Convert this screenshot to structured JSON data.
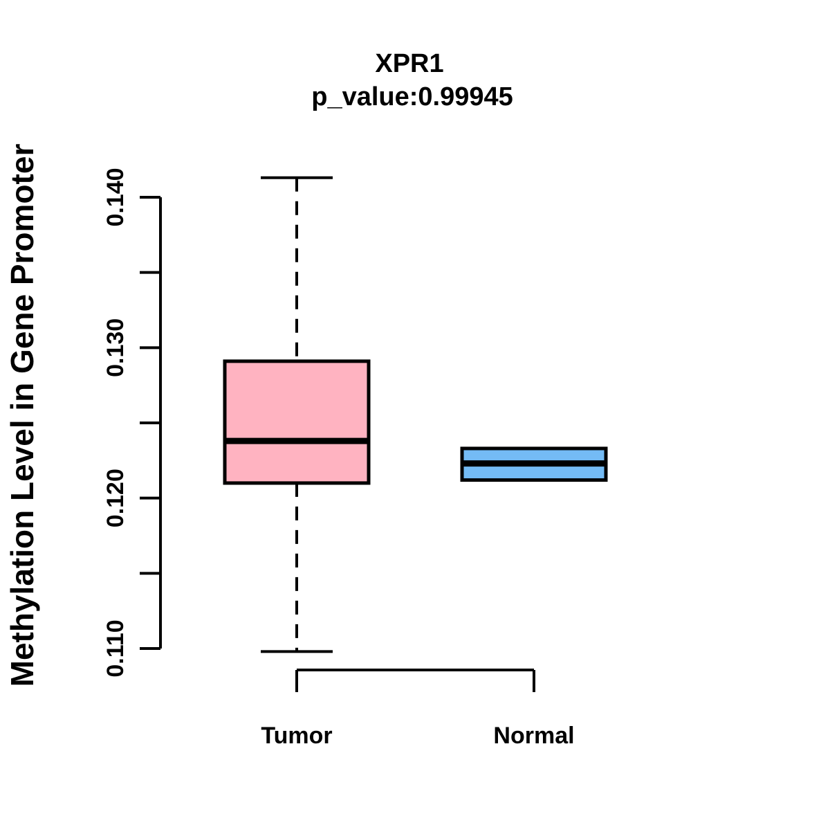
{
  "figure": {
    "title": "XPR1",
    "subtitle": "p_value:0.99945"
  },
  "chart_data": {
    "type": "boxplot",
    "title": "XPR1",
    "subtitle": "p_value:0.99945",
    "p_value": 0.99945,
    "xlabel": "",
    "ylabel": "Methylation Level in Gene Promoter",
    "axis_ymin": 0.11,
    "axis_ymax": 0.14,
    "ylim": [
      0.1095,
      0.1415
    ],
    "yticks_labeled": [
      0.11,
      0.12,
      0.13,
      0.14
    ],
    "yticks_minor": [
      0.115,
      0.125,
      0.135
    ],
    "ytick_decimals": 3,
    "grid": false,
    "legend": "none",
    "groups": [
      {
        "label": "Tumor",
        "fill_color": "#FFB3C1",
        "whisker_low": 0.1098,
        "q1": 0.121,
        "median": 0.1238,
        "q3": 0.1291,
        "whisker_high": 0.1413
      },
      {
        "label": "Normal",
        "fill_color": "#74BBF5",
        "whisker_low": 0.1212,
        "q1": 0.1212,
        "median": 0.1223,
        "q3": 0.1233,
        "whisker_high": 0.1233
      }
    ],
    "colors": {
      "stroke": "#000000",
      "background": "#FFFFFF",
      "tumor_fill": "#FFB3C1",
      "normal_fill": "#74BBF5"
    }
  }
}
